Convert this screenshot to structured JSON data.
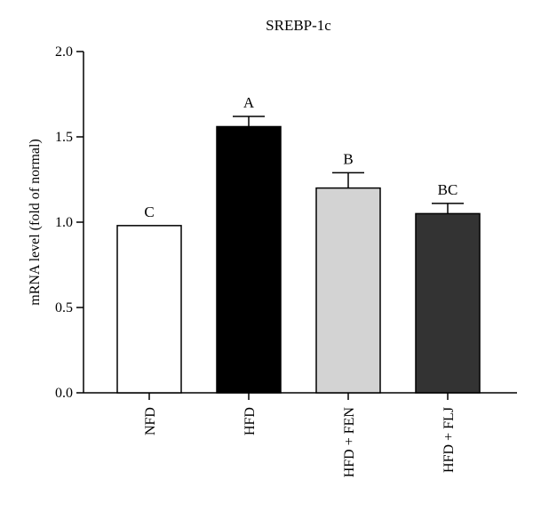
{
  "chart_data": {
    "type": "bar",
    "title": "SREBP-1c",
    "xlabel": "",
    "ylabel": "mRNA level (fold of normal)",
    "ylim": [
      0,
      2.0
    ],
    "yticks": [
      "0.0",
      "0.5",
      "1.0",
      "1.5",
      "2.0"
    ],
    "categories": [
      "NFD",
      "HFD",
      "HFD + FEN",
      "HFD + FLJ"
    ],
    "values": [
      0.98,
      1.56,
      1.2,
      1.05
    ],
    "errors": [
      0,
      0.06,
      0.09,
      0.06
    ],
    "significance_labels": [
      "C",
      "A",
      "B",
      "BC"
    ],
    "bar_colors": [
      "#ffffff",
      "#000000",
      "#d3d3d3",
      "#333333"
    ],
    "grid": false,
    "legend": "none"
  }
}
